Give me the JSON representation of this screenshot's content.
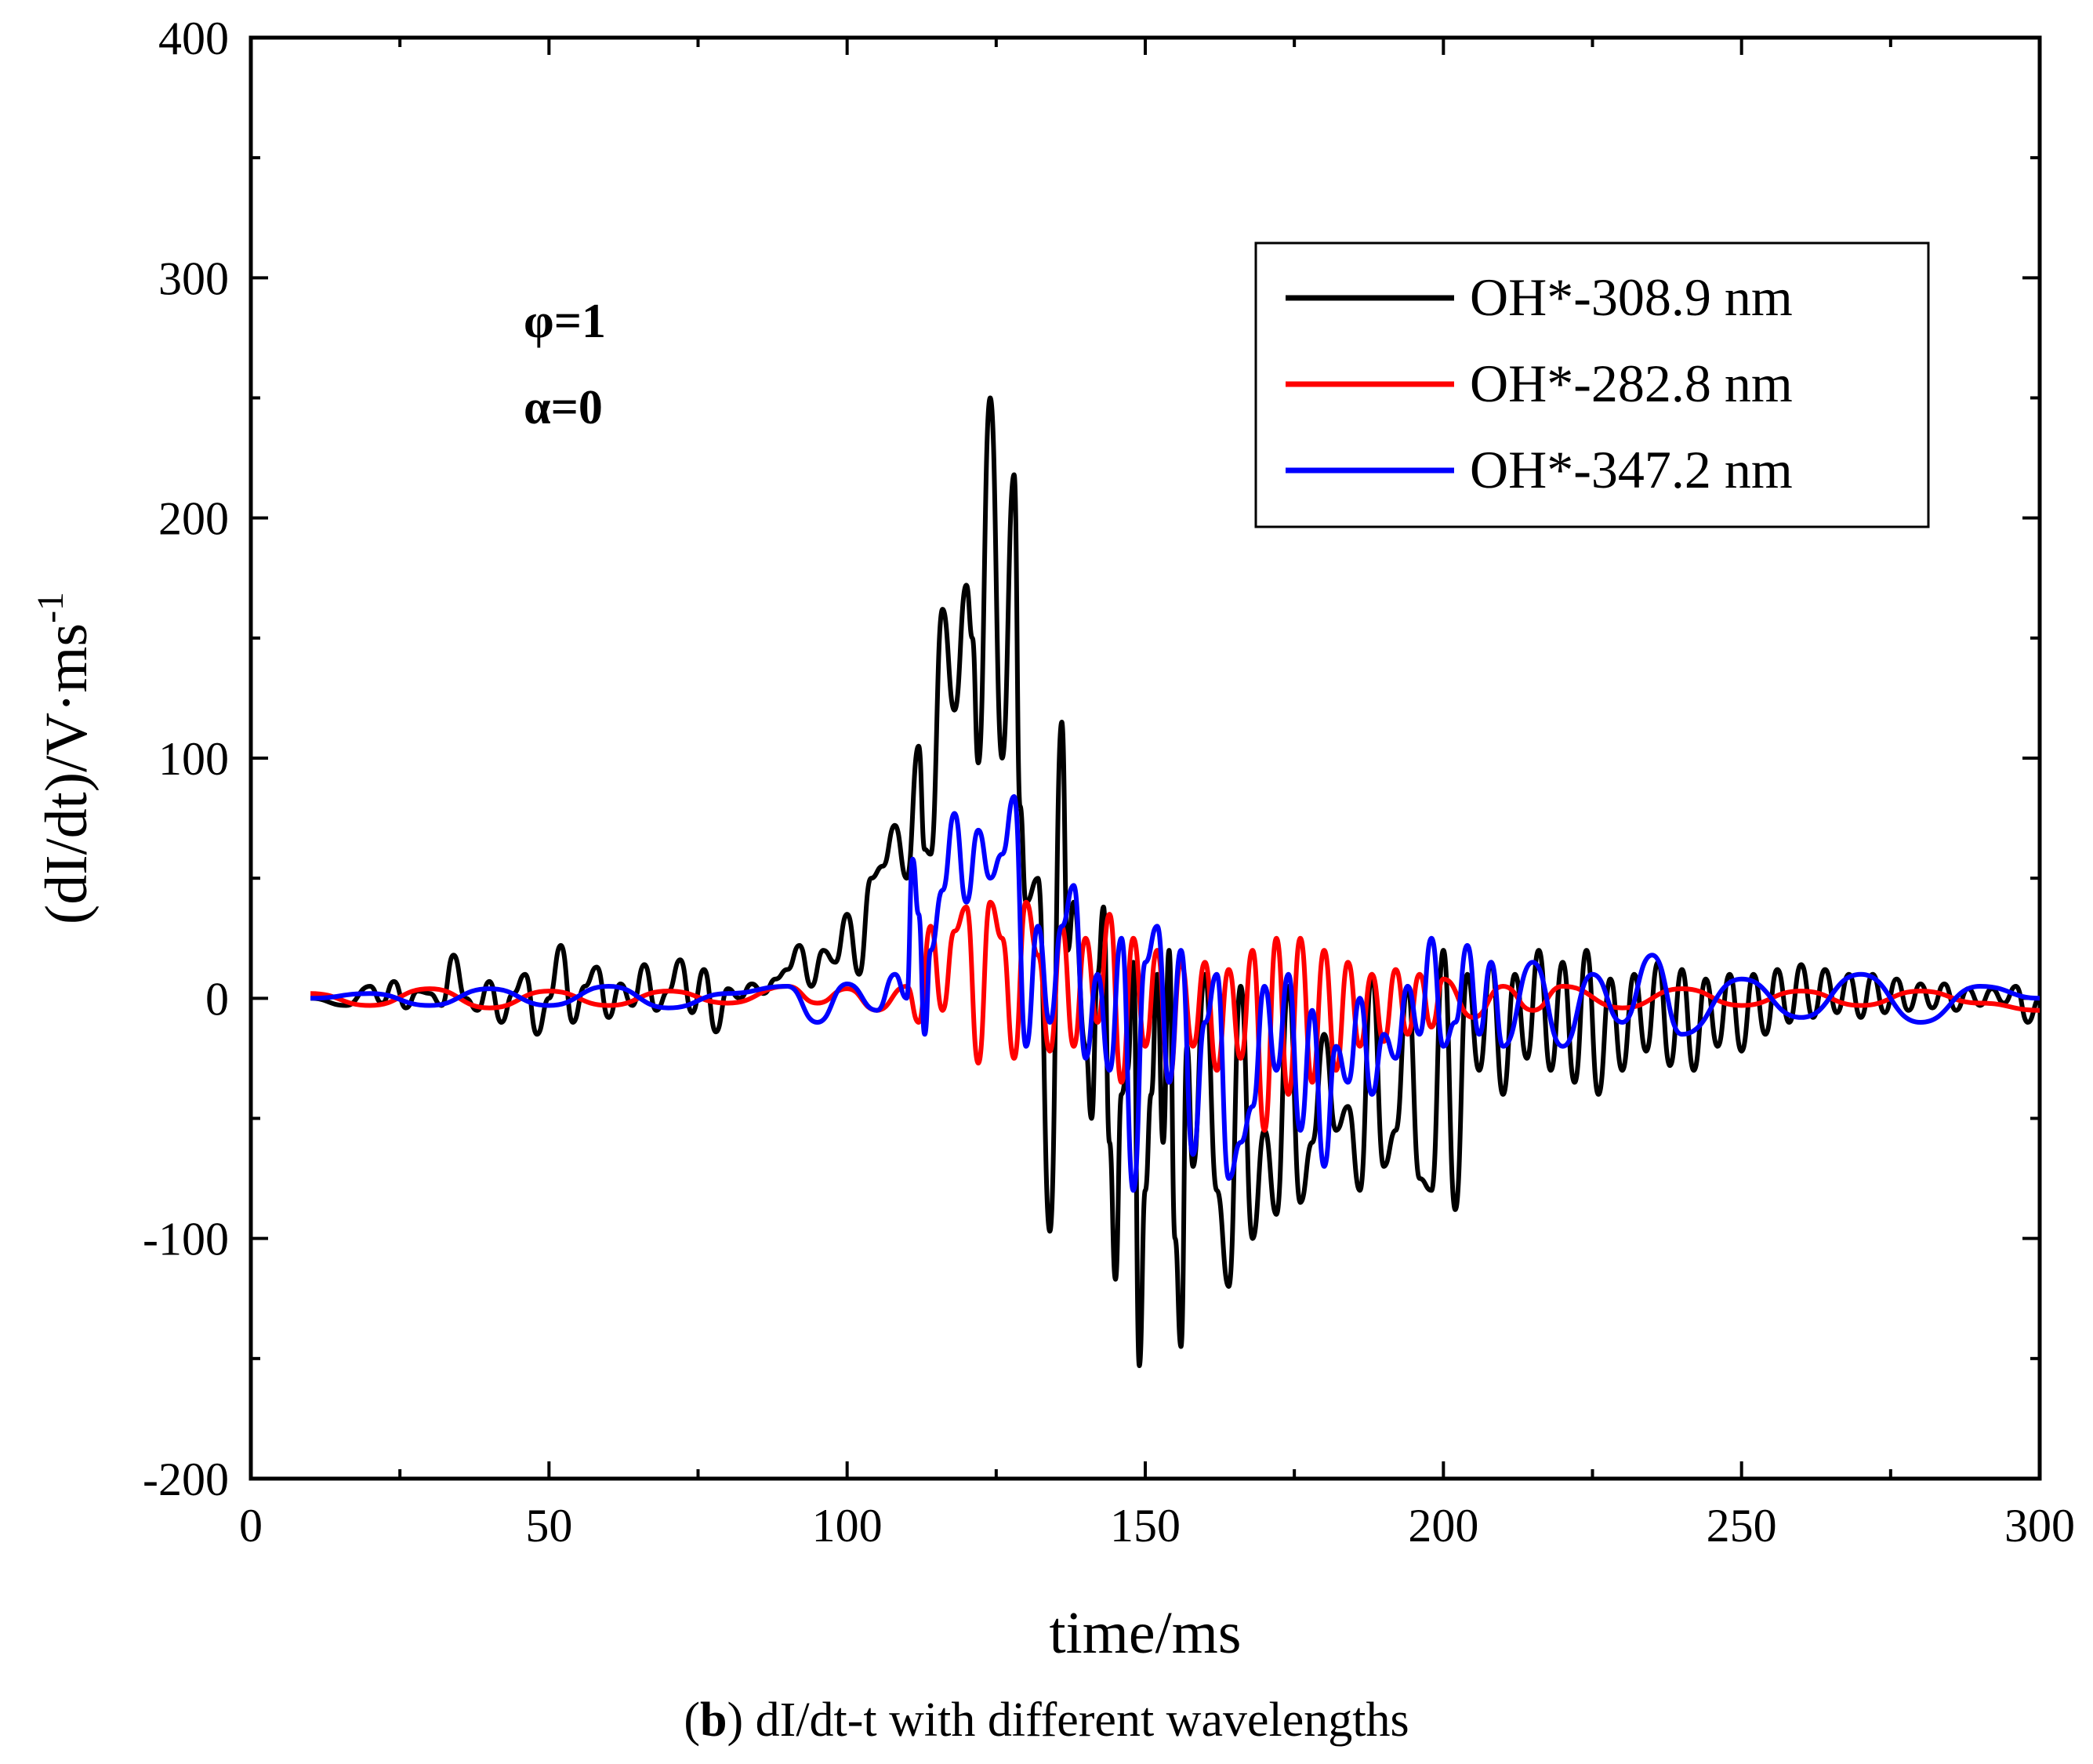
{
  "chart_data": {
    "type": "line",
    "title": "",
    "xlabel": "time/ms",
    "ylabel": "(dI/dt)/V·ms",
    "ylabel_superscript": "-1",
    "xlim": [
      0,
      300
    ],
    "ylim": [
      -200,
      400
    ],
    "xticks": [
      0,
      50,
      100,
      150,
      200,
      250,
      300
    ],
    "yticks": [
      -200,
      -100,
      0,
      100,
      200,
      300,
      400
    ],
    "grid": false,
    "legend_position": "top-right",
    "annotations": [
      "φ=1",
      "α=0"
    ],
    "series": [
      {
        "name": "OH*-308.9 nm",
        "color": "#000000",
        "x": [
          10,
          16,
          20,
          22,
          24,
          26,
          28,
          30,
          32,
          34,
          36,
          38,
          40,
          42,
          44,
          46,
          48,
          50,
          52,
          54,
          56,
          58,
          60,
          62,
          64,
          66,
          68,
          70,
          72,
          74,
          76,
          78,
          80,
          82,
          84,
          86,
          88,
          90,
          92,
          94,
          96,
          98,
          100,
          102,
          104,
          106,
          108,
          110,
          112,
          113,
          114,
          116,
          118,
          120,
          121,
          122,
          124,
          126,
          128,
          129,
          130,
          132,
          134,
          136,
          137,
          138,
          140,
          141,
          142,
          143,
          144,
          145,
          146,
          147,
          148,
          149,
          150,
          151,
          152,
          153,
          154,
          155,
          156,
          157,
          158,
          160,
          162,
          164,
          166,
          168,
          170,
          172,
          174,
          176,
          178,
          180,
          182,
          184,
          186,
          188,
          190,
          192,
          194,
          196,
          198,
          200,
          202,
          204,
          206,
          208,
          210,
          212,
          214,
          216,
          218,
          220,
          222,
          224,
          226,
          228,
          230,
          232,
          234,
          236,
          238,
          240,
          242,
          244,
          246,
          248,
          250,
          252,
          254,
          256,
          258,
          260,
          262,
          264,
          266,
          268,
          270,
          272,
          274,
          276,
          278,
          280,
          282,
          284,
          286,
          288,
          290,
          292,
          294,
          296,
          298,
          300
        ],
        "values": [
          0,
          -3,
          5,
          -2,
          7,
          -4,
          3,
          2,
          -3,
          18,
          0,
          -5,
          7,
          -10,
          2,
          10,
          -15,
          0,
          22,
          -10,
          5,
          13,
          -8,
          6,
          -3,
          14,
          -5,
          3,
          16,
          -6,
          12,
          -14,
          4,
          0,
          6,
          2,
          8,
          12,
          22,
          5,
          20,
          15,
          35,
          10,
          50,
          55,
          72,
          50,
          105,
          62,
          60,
          162,
          120,
          172,
          150,
          98,
          250,
          100,
          218,
          80,
          40,
          50,
          -97,
          115,
          20,
          40,
          -20,
          -50,
          10,
          38,
          -60,
          -117,
          -40,
          -30,
          15,
          -153,
          -80,
          -40,
          10,
          -60,
          20,
          -100,
          -145,
          -20,
          -70,
          10,
          -80,
          -120,
          5,
          -100,
          -55,
          -90,
          5,
          -85,
          -60,
          -15,
          -55,
          -45,
          -80,
          10,
          -70,
          -55,
          5,
          -75,
          -80,
          20,
          -88,
          10,
          -30,
          15,
          -40,
          10,
          -25,
          20,
          -30,
          15,
          -35,
          20,
          -40,
          8,
          -30,
          10,
          -22,
          15,
          -28,
          12,
          -30,
          8,
          -20,
          10,
          -22,
          10,
          -15,
          12,
          -10,
          14,
          -8,
          12,
          -6,
          10,
          -8,
          10,
          -6,
          8,
          -5,
          6,
          -4,
          6,
          -5,
          4,
          -3,
          4,
          -2,
          5,
          -10,
          0
        ]
      },
      {
        "name": "OH*-282.8 nm",
        "color": "#ff0000",
        "x": [
          10,
          20,
          30,
          40,
          50,
          60,
          70,
          80,
          90,
          95,
          100,
          105,
          110,
          112,
          114,
          116,
          118,
          120,
          122,
          124,
          126,
          128,
          130,
          132,
          134,
          136,
          138,
          140,
          142,
          144,
          146,
          148,
          150,
          152,
          154,
          156,
          158,
          160,
          162,
          164,
          166,
          168,
          170,
          172,
          174,
          176,
          178,
          180,
          182,
          184,
          186,
          188,
          190,
          192,
          194,
          196,
          198,
          200,
          205,
          210,
          215,
          220,
          230,
          240,
          250,
          260,
          270,
          280,
          290,
          300
        ],
        "values": [
          2,
          -3,
          4,
          -4,
          3,
          -3,
          3,
          -2,
          5,
          -2,
          4,
          -5,
          5,
          -10,
          30,
          -5,
          28,
          38,
          -27,
          40,
          25,
          -25,
          40,
          18,
          -22,
          30,
          -20,
          25,
          -10,
          35,
          -35,
          25,
          -20,
          20,
          -35,
          15,
          -20,
          15,
          -30,
          12,
          -25,
          20,
          -55,
          25,
          -40,
          25,
          -35,
          20,
          -30,
          15,
          -20,
          10,
          -18,
          12,
          -15,
          10,
          -12,
          8,
          -8,
          5,
          -5,
          5,
          -4,
          4,
          -3,
          3,
          -3,
          3,
          -2,
          -5
        ]
      },
      {
        "name": "OH*-347.2 nm",
        "color": "#0000ff",
        "x": [
          10,
          20,
          30,
          40,
          50,
          60,
          70,
          80,
          90,
          95,
          100,
          105,
          108,
          110,
          111,
          112,
          113,
          114,
          116,
          118,
          120,
          122,
          124,
          126,
          128,
          130,
          132,
          134,
          136,
          138,
          140,
          142,
          144,
          146,
          148,
          150,
          152,
          154,
          156,
          158,
          160,
          162,
          164,
          166,
          168,
          170,
          172,
          174,
          176,
          178,
          180,
          182,
          184,
          186,
          188,
          190,
          192,
          194,
          196,
          198,
          200,
          202,
          204,
          206,
          208,
          210,
          215,
          220,
          225,
          230,
          235,
          240,
          250,
          260,
          270,
          280,
          290,
          300
        ],
        "values": [
          0,
          2,
          -3,
          4,
          -3,
          5,
          -4,
          2,
          5,
          -10,
          6,
          -5,
          10,
          0,
          58,
          35,
          -15,
          20,
          45,
          77,
          40,
          70,
          50,
          60,
          84,
          -20,
          30,
          -10,
          30,
          47,
          -25,
          10,
          -30,
          25,
          -80,
          15,
          30,
          -35,
          20,
          -65,
          -10,
          10,
          -75,
          -60,
          -45,
          5,
          -30,
          10,
          -55,
          -5,
          -70,
          -20,
          -35,
          0,
          -40,
          -15,
          -25,
          5,
          -15,
          25,
          -20,
          -10,
          22,
          -15,
          15,
          -20,
          15,
          -20,
          10,
          -10,
          18,
          -15,
          8,
          -8,
          10,
          -10,
          5,
          0
        ]
      }
    ]
  },
  "caption": {
    "bold_part": "b",
    "rest": ") dI/dt-t with different wavelengths",
    "open_paren": "("
  }
}
